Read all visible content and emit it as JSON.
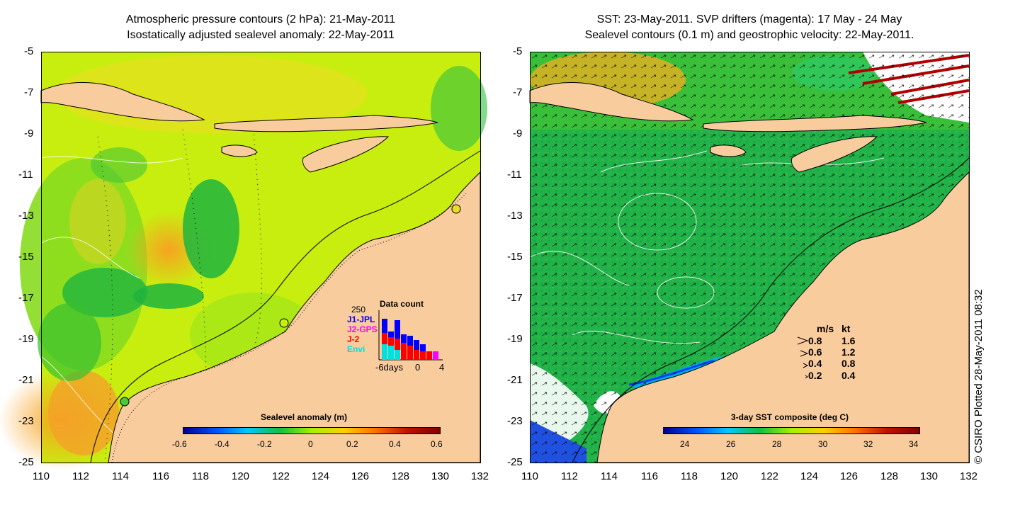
{
  "left": {
    "title_line1": "Atmospheric pressure contours (2 hPa): 21-May-2011",
    "title_line2": "Isostatically adjusted sealevel anomaly: 22-May-2011",
    "colorbar": {
      "title": "Sealevel anomaly (m)",
      "ticks": [
        "-0.6",
        "-0.4",
        "-0.2",
        "0",
        "0.2",
        "0.4",
        "0.6"
      ],
      "range": [
        -0.6,
        0.6
      ],
      "colormap": [
        "#00008f",
        "#0050ff",
        "#00c8ff",
        "#10c040",
        "#a8f000",
        "#ffd000",
        "#ff7000",
        "#c01000",
        "#800000"
      ]
    },
    "inset": {
      "title": "Data count",
      "max_label": "250",
      "x_labels": [
        "-6days",
        "0",
        "4"
      ],
      "legend": [
        {
          "label": "J1-JPL",
          "color": "#0000ff"
        },
        {
          "label": "J2-GPS",
          "color": "#ff00ff"
        },
        {
          "label": "J-2",
          "color": "#ff0000"
        },
        {
          "label": "Envi",
          "color": "#00e0e0"
        }
      ]
    }
  },
  "right": {
    "title_line1": "SST: 23-May-2011. SVP drifters (magenta): 17 May - 24 May",
    "title_line2": "Sealevel contours (0.1 m) and geostrophic velocity: 22-May-2011.",
    "colorbar": {
      "title": "3-day SST composite (deg C)",
      "ticks": [
        "24",
        "26",
        "28",
        "30",
        "32",
        "34"
      ],
      "range": [
        22.7,
        34.2
      ],
      "colormap": [
        "#00008f",
        "#0050ff",
        "#00c8ff",
        "#10c040",
        "#a8f000",
        "#ffd000",
        "#ff7000",
        "#c01000",
        "#800000"
      ]
    },
    "velocity_key": {
      "headers": [
        "m/s",
        "kt"
      ],
      "rows": [
        [
          "0.8",
          "1.6"
        ],
        [
          "0.6",
          "1.2"
        ],
        [
          "0.4",
          "0.8"
        ],
        [
          "0.2",
          "0.4"
        ]
      ]
    }
  },
  "axes": {
    "y_ticks": [
      "-5",
      "-7",
      "-9",
      "-11",
      "-13",
      "-15",
      "-17",
      "-19",
      "-21",
      "-23",
      "-25"
    ],
    "x_ticks": [
      "110",
      "112",
      "114",
      "116",
      "118",
      "120",
      "122",
      "124",
      "126",
      "128",
      "130",
      "132"
    ],
    "lat_range": [
      -25,
      -5
    ],
    "lon_range": [
      110,
      132
    ]
  },
  "credit": "© CSIRO Plotted 28-May-2011 08:32",
  "colors": {
    "land": "#f9cc9e",
    "ocean_left": "#c8ee10",
    "ocean_right": "#22b24a"
  }
}
